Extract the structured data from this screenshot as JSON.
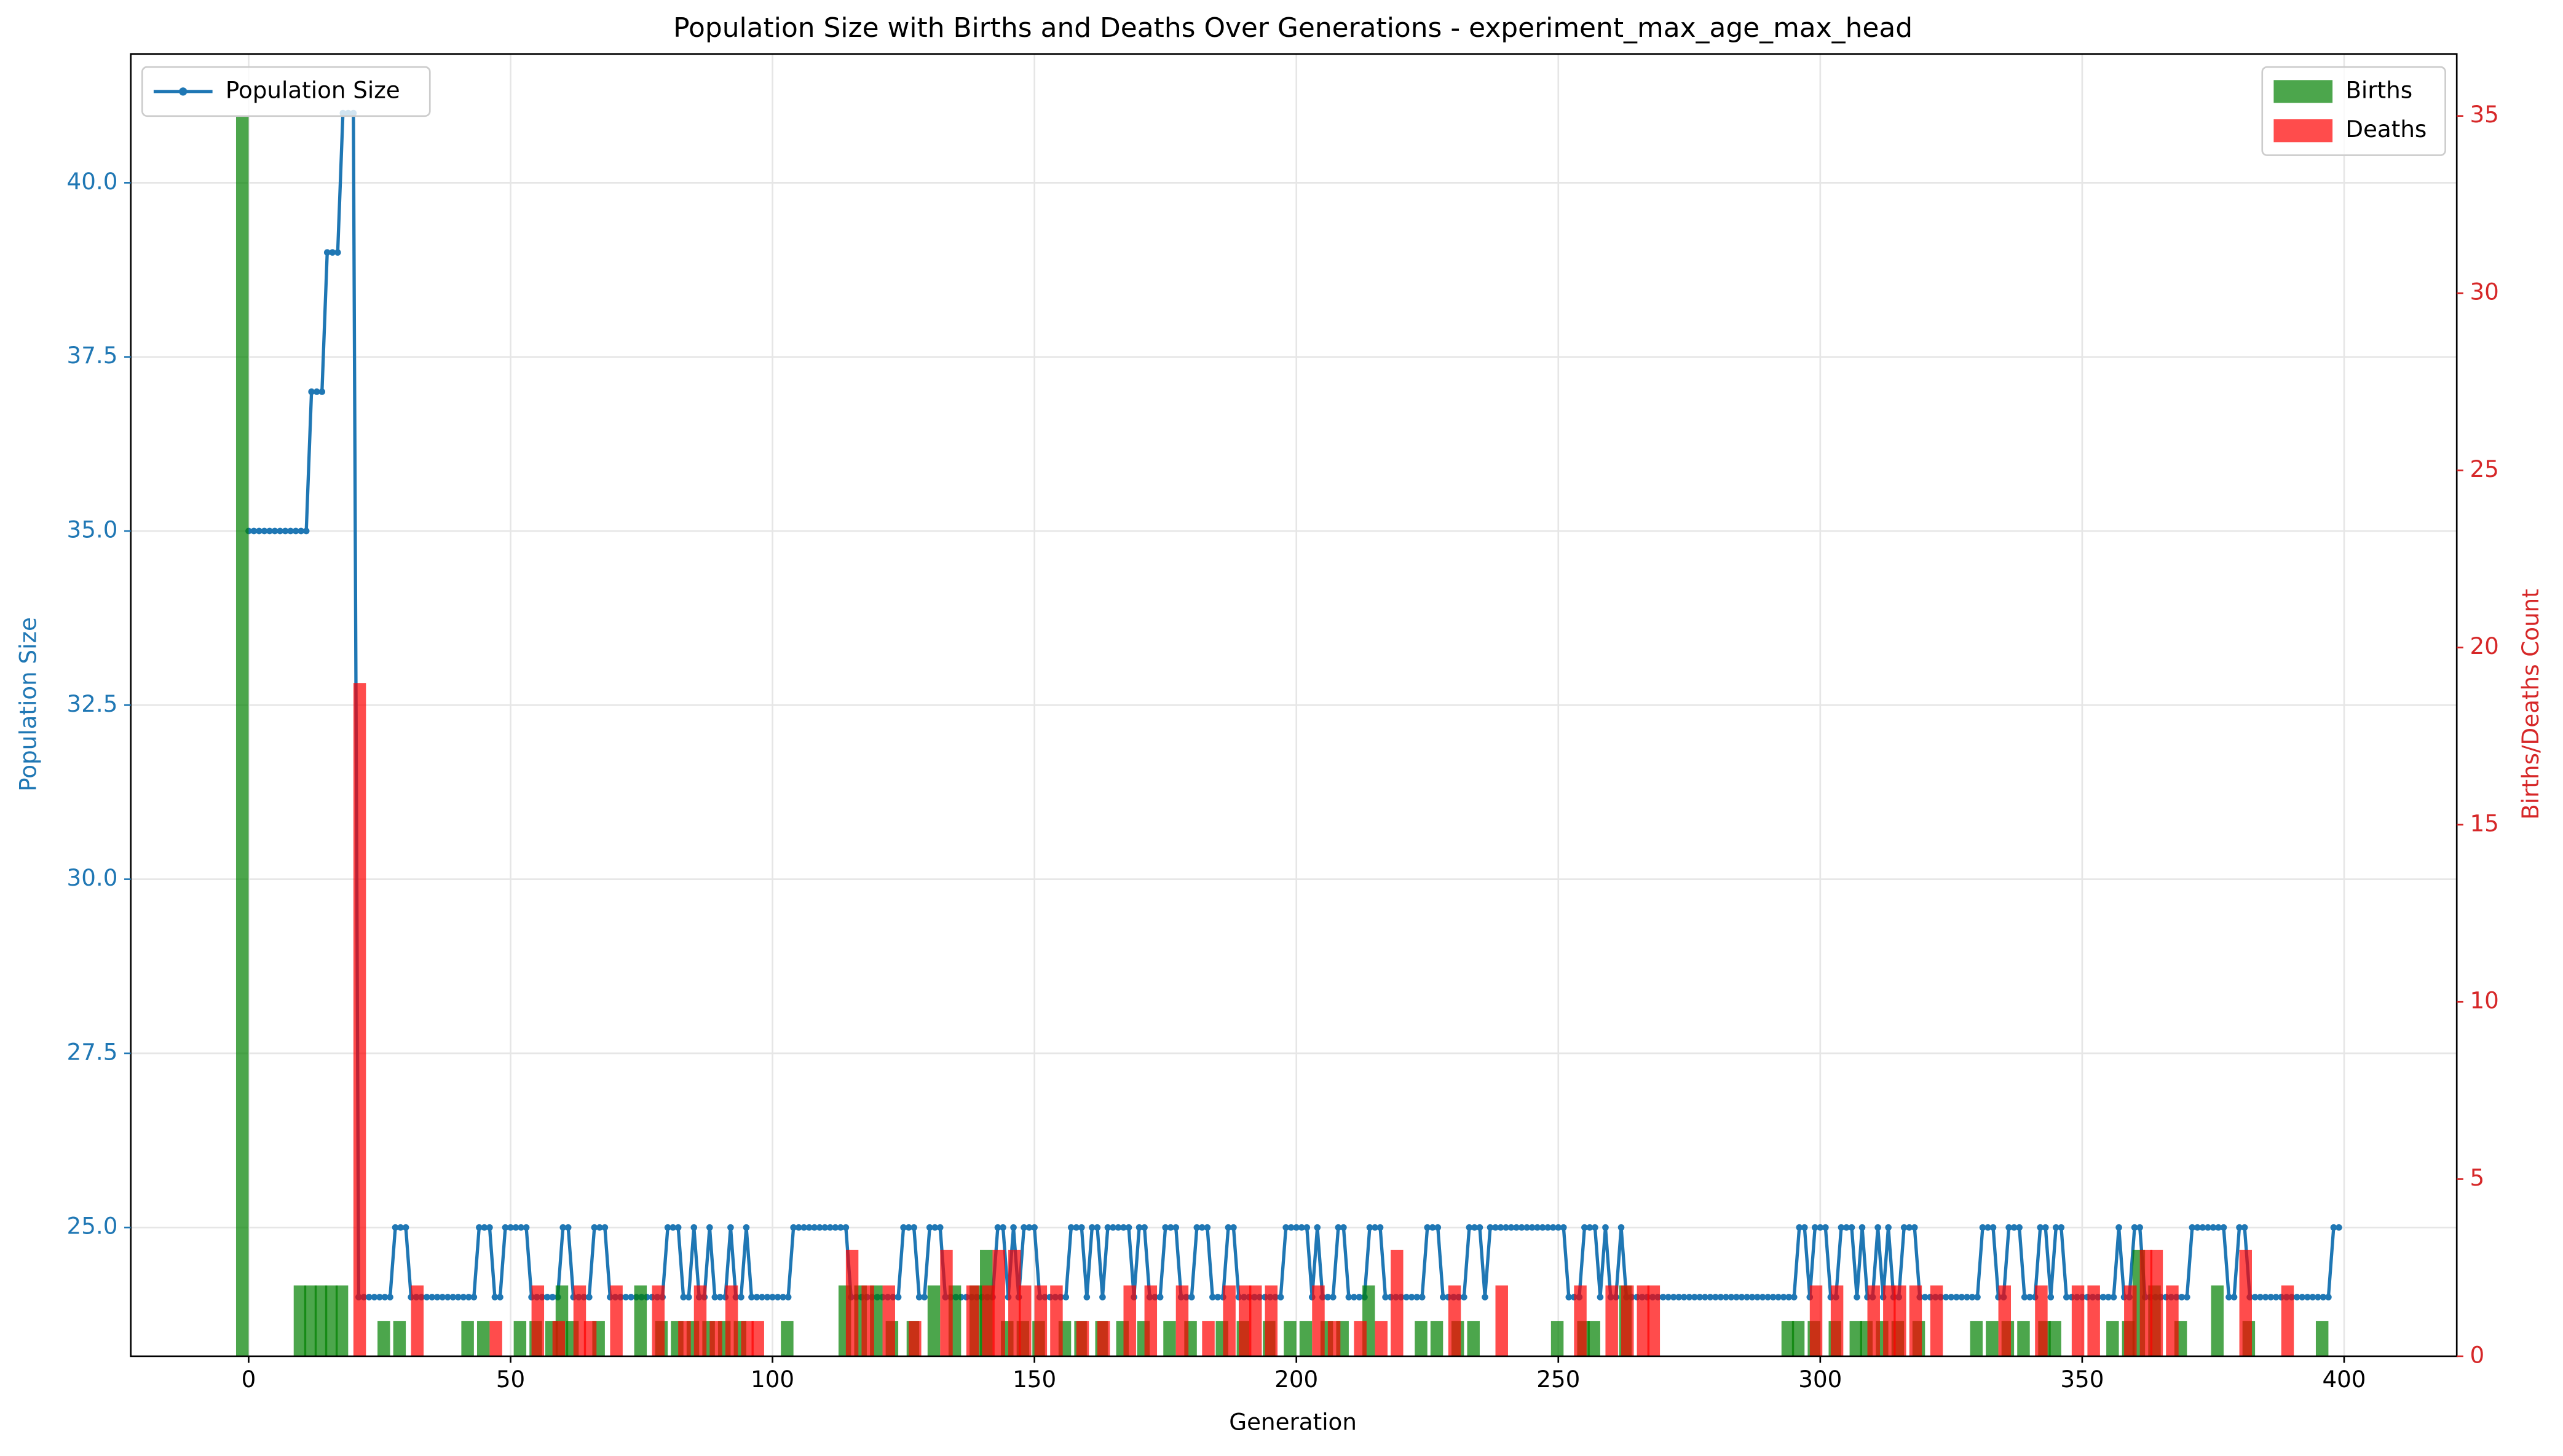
{
  "chart_data": {
    "type": "line",
    "title": "Population Size with Births and Deaths Over Generations - experiment_max_age_max_head",
    "x_label": "Generation",
    "y_label": "Population Size",
    "y2_label": "Births/Deaths Count",
    "y_label_color": "#1f77b4",
    "y2_label_color": "#d62728",
    "grid": true,
    "xlim": [
      -22.5,
      421.5
    ],
    "xticks": [
      0,
      50,
      100,
      150,
      200,
      250,
      300,
      350,
      400
    ],
    "ylim": [
      23.15,
      41.85
    ],
    "yticks": [
      {
        "value": 25,
        "label": "25.0"
      },
      27.5,
      {
        "value": 30,
        "label": "30.0"
      },
      32.5,
      {
        "value": 35,
        "label": "35.0"
      },
      37.5,
      {
        "value": 40,
        "label": "40.0"
      }
    ],
    "y2lim": [
      0,
      36.75
    ],
    "y2ticks": [
      0,
      5,
      10,
      15,
      20,
      25,
      30,
      35
    ],
    "series": [
      {
        "name": "Population Size",
        "type": "line",
        "color": "#1f77b4",
        "legend": "upper left",
        "x": [
          0,
          1,
          2,
          3,
          4,
          5,
          6,
          7,
          8,
          9,
          10,
          11,
          12,
          13,
          14,
          15,
          16,
          17,
          18,
          19,
          20,
          21,
          22,
          23,
          24,
          25,
          26,
          27,
          28,
          29,
          30,
          31,
          32,
          33,
          34,
          35,
          36,
          37,
          38,
          39,
          40,
          41,
          42,
          43,
          44,
          45,
          46,
          47,
          48,
          49,
          50,
          51,
          52,
          53,
          54,
          55,
          56,
          57,
          58,
          59,
          60,
          61,
          62,
          63,
          64,
          65,
          66,
          67,
          68,
          69,
          70,
          71,
          72,
          73,
          74,
          75,
          76,
          77,
          78,
          79,
          80,
          81,
          82,
          83,
          84,
          85,
          86,
          87,
          88,
          89,
          90,
          91,
          92,
          93,
          94,
          95,
          96,
          97,
          98,
          99,
          100,
          101,
          102,
          103,
          104,
          105,
          106,
          107,
          108,
          109,
          110,
          111,
          112,
          113,
          114,
          115,
          116,
          117,
          118,
          119,
          120,
          121,
          122,
          123,
          124,
          125,
          126,
          127,
          128,
          129,
          130,
          131,
          132,
          133,
          134,
          135,
          136,
          137,
          138,
          139,
          140,
          141,
          142,
          143,
          144,
          145,
          146,
          147,
          148,
          149,
          150,
          151,
          152,
          153,
          154,
          155,
          156,
          157,
          158,
          159,
          160,
          161,
          162,
          163,
          164,
          165,
          166,
          167,
          168,
          169,
          170,
          171,
          172,
          173,
          174,
          175,
          176,
          177,
          178,
          179,
          180,
          181,
          182,
          183,
          184,
          185,
          186,
          187,
          188,
          189,
          190,
          191,
          192,
          193,
          194,
          195,
          196,
          197,
          198,
          199,
          200,
          201,
          202,
          203,
          204,
          205,
          206,
          207,
          208,
          209,
          210,
          211,
          212,
          213,
          214,
          215,
          216,
          217,
          218,
          219,
          220,
          221,
          222,
          223,
          224,
          225,
          226,
          227,
          228,
          229,
          230,
          231,
          232,
          233,
          234,
          235,
          236,
          237,
          238,
          239,
          240,
          241,
          242,
          243,
          244,
          245,
          246,
          247,
          248,
          249,
          250,
          251,
          252,
          253,
          254,
          255,
          256,
          257,
          258,
          259,
          260,
          261,
          262,
          263,
          264,
          265,
          266,
          267,
          268,
          269,
          270,
          271,
          272,
          273,
          274,
          275,
          276,
          277,
          278,
          279,
          280,
          281,
          282,
          283,
          284,
          285,
          286,
          287,
          288,
          289,
          290,
          291,
          292,
          293,
          294,
          295,
          296,
          297,
          298,
          299,
          300,
          301,
          302,
          303,
          304,
          305,
          306,
          307,
          308,
          309,
          310,
          311,
          312,
          313,
          314,
          315,
          316,
          317,
          318,
          319,
          320,
          321,
          322,
          323,
          324,
          325,
          326,
          327,
          328,
          329,
          330,
          331,
          332,
          333,
          334,
          335,
          336,
          337,
          338,
          339,
          340,
          341,
          342,
          343,
          344,
          345,
          346,
          347,
          348,
          349,
          350,
          351,
          352,
          353,
          354,
          355,
          356,
          357,
          358,
          359,
          360,
          361,
          362,
          363,
          364,
          365,
          366,
          367,
          368,
          369,
          370,
          371,
          372,
          373,
          374,
          375,
          376,
          377,
          378,
          379,
          380,
          381,
          382,
          383,
          384,
          385,
          386,
          387,
          388,
          389,
          390,
          391,
          392,
          393,
          394,
          395,
          396,
          397,
          398,
          399
        ],
        "values": [
          35,
          35,
          35,
          35,
          35,
          35,
          35,
          35,
          35,
          35,
          35,
          35,
          37,
          37,
          37,
          39,
          39,
          39,
          41,
          41,
          41,
          24,
          24,
          24,
          24,
          24,
          24,
          24,
          25,
          25,
          25,
          24,
          24,
          24,
          24,
          24,
          24,
          24,
          24,
          24,
          24,
          24,
          24,
          24,
          25,
          25,
          25,
          24,
          24,
          25,
          25,
          25,
          25,
          25,
          24,
          24,
          24,
          24,
          24,
          24,
          25,
          25,
          24,
          24,
          24,
          24,
          25,
          25,
          25,
          24,
          24,
          24,
          24,
          24,
          24,
          24,
          24,
          24,
          24,
          24,
          25,
          25,
          25,
          24,
          24,
          25,
          24,
          24,
          25,
          24,
          24,
          24,
          25,
          24,
          24,
          25,
          24,
          24,
          24,
          24,
          24,
          24,
          24,
          24,
          25,
          25,
          25,
          25,
          25,
          25,
          25,
          25,
          25,
          25,
          25,
          24,
          24,
          24,
          24,
          24,
          24,
          24,
          24,
          24,
          24,
          25,
          25,
          25,
          24,
          24,
          25,
          25,
          25,
          24,
          24,
          24,
          24,
          24,
          24,
          24,
          24,
          24,
          24,
          25,
          25,
          24,
          25,
          24,
          25,
          25,
          25,
          24,
          24,
          24,
          24,
          24,
          24,
          25,
          25,
          25,
          24,
          25,
          25,
          24,
          25,
          25,
          25,
          25,
          25,
          24,
          25,
          25,
          24,
          24,
          24,
          25,
          25,
          25,
          24,
          24,
          24,
          25,
          25,
          25,
          24,
          24,
          24,
          25,
          25,
          24,
          24,
          24,
          24,
          24,
          24,
          24,
          24,
          24,
          25,
          25,
          25,
          25,
          25,
          24,
          25,
          24,
          24,
          24,
          25,
          25,
          24,
          24,
          24,
          24,
          25,
          25,
          25,
          24,
          24,
          24,
          24,
          24,
          24,
          24,
          24,
          25,
          25,
          25,
          24,
          24,
          24,
          24,
          24,
          25,
          25,
          25,
          24,
          25,
          25,
          25,
          25,
          25,
          25,
          25,
          25,
          25,
          25,
          25,
          25,
          25,
          25,
          25,
          24,
          24,
          24,
          25,
          25,
          25,
          24,
          25,
          24,
          24,
          25,
          24,
          24,
          24,
          24,
          24,
          24,
          24,
          24,
          24,
          24,
          24,
          24,
          24,
          24,
          24,
          24,
          24,
          24,
          24,
          24,
          24,
          24,
          24,
          24,
          24,
          24,
          24,
          24,
          24,
          24,
          24,
          24,
          24,
          25,
          25,
          24,
          25,
          25,
          25,
          24,
          24,
          25,
          25,
          25,
          24,
          25,
          24,
          24,
          25,
          24,
          25,
          24,
          24,
          25,
          25,
          25,
          24,
          24,
          24,
          24,
          24,
          24,
          24,
          24,
          24,
          24,
          24,
          24,
          25,
          25,
          25,
          24,
          24,
          25,
          25,
          25,
          24,
          24,
          24,
          25,
          25,
          24,
          25,
          25,
          24,
          24,
          24,
          24,
          24,
          24,
          24,
          24,
          24,
          24,
          25,
          24,
          24,
          25,
          25,
          24,
          24,
          24,
          24,
          24,
          24,
          24,
          24,
          24,
          25,
          25,
          25,
          25,
          25,
          25,
          25,
          24,
          24,
          25,
          25,
          24,
          24,
          24,
          24,
          24,
          24,
          24,
          24,
          24,
          24,
          24,
          24,
          24,
          24,
          24,
          24,
          25,
          25
        ]
      },
      {
        "name": "Births",
        "type": "bar",
        "axis": "y2",
        "color": "#008000",
        "legend": "upper right",
        "x": [
          0,
          11,
          13,
          15,
          17,
          19,
          27,
          30,
          43,
          46,
          53,
          56,
          59,
          61,
          63,
          68,
          76,
          80,
          83,
          86,
          89,
          92,
          95,
          104,
          115,
          118,
          121,
          124,
          128,
          132,
          136,
          140,
          142,
          146,
          149,
          152,
          157,
          160,
          164,
          168,
          172,
          177,
          181,
          187,
          191,
          196,
          200,
          203,
          207,
          210,
          215,
          225,
          228,
          232,
          235,
          251,
          256,
          258,
          264,
          295,
          297,
          300,
          304,
          308,
          310,
          313,
          316,
          320,
          331,
          334,
          337,
          340,
          344,
          346,
          357,
          360,
          362,
          365,
          370,
          377,
          383,
          397
        ],
        "values": [
          35,
          2,
          2,
          2,
          2,
          2,
          1,
          1,
          1,
          1,
          1,
          1,
          1,
          2,
          1,
          1,
          2,
          1,
          1,
          1,
          1,
          1,
          1,
          1,
          2,
          2,
          2,
          1,
          1,
          2,
          2,
          2,
          3,
          1,
          1,
          1,
          1,
          1,
          1,
          1,
          1,
          1,
          1,
          1,
          1,
          1,
          1,
          1,
          1,
          1,
          2,
          1,
          1,
          1,
          1,
          1,
          1,
          1,
          2,
          1,
          1,
          1,
          1,
          1,
          1,
          1,
          1,
          1,
          1,
          1,
          1,
          1,
          1,
          1,
          1,
          1,
          3,
          2,
          1,
          2,
          1,
          1
        ]
      },
      {
        "name": "Deaths",
        "type": "bar",
        "axis": "y2",
        "color": "#ff0000",
        "legend": "upper right",
        "x": [
          20,
          31,
          46,
          54,
          58,
          62,
          64,
          69,
          77,
          82,
          85,
          88,
          91,
          94,
          96,
          114,
          117,
          121,
          126,
          132,
          137,
          140,
          142,
          145,
          147,
          150,
          153,
          158,
          162,
          167,
          171,
          177,
          182,
          186,
          189,
          191,
          194,
          203,
          206,
          211,
          215,
          218,
          229,
          238,
          253,
          259,
          262,
          265,
          267,
          298,
          302,
          309,
          312,
          314,
          317,
          321,
          334,
          341,
          348,
          351,
          358,
          361,
          363,
          366,
          380,
          388
        ],
        "values": [
          19,
          2,
          1,
          2,
          1,
          2,
          1,
          2,
          2,
          1,
          2,
          1,
          2,
          1,
          1,
          3,
          2,
          2,
          1,
          3,
          2,
          2,
          3,
          3,
          2,
          2,
          2,
          1,
          1,
          2,
          2,
          2,
          1,
          2,
          2,
          2,
          2,
          2,
          1,
          1,
          1,
          3,
          2,
          2,
          2,
          2,
          2,
          2,
          2,
          2,
          2,
          2,
          2,
          2,
          2,
          2,
          2,
          2,
          2,
          2,
          2,
          3,
          3,
          2,
          3,
          2
        ]
      }
    ]
  }
}
